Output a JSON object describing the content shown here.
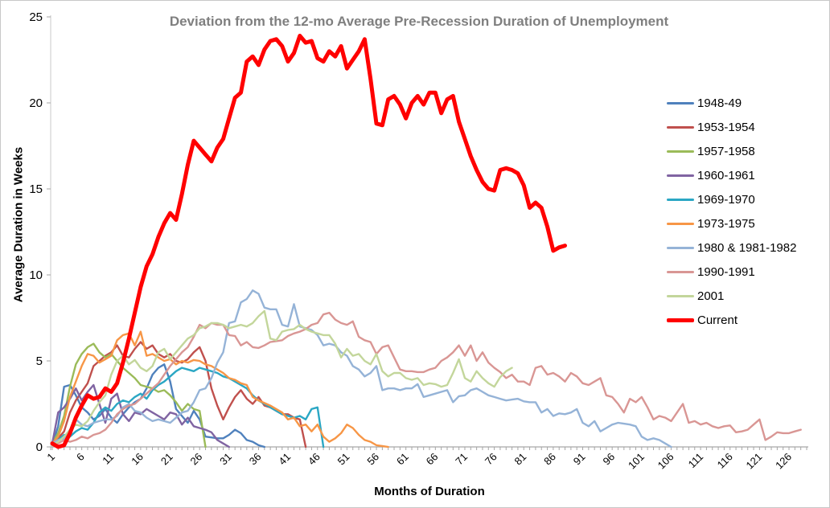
{
  "title": "Deviation from the 12-mo Average Pre-Recession Duration of Unemployment",
  "colors": {
    "title_text": "#7f7f7f",
    "axis_line": "#a6a6a6",
    "tick_mark": "#a6a6a6",
    "frame_border": "#c8c8c8"
  },
  "chart_data": {
    "type": "line",
    "title": "Deviation from the 12-mo Average Pre-Recession Duration of Unemployment",
    "xlabel": "Months of Duration",
    "ylabel": "Average Duration in Weeks",
    "ylim": [
      0,
      25
    ],
    "y_ticks": [
      0,
      5,
      10,
      15,
      20,
      25
    ],
    "x_tick_labels": [
      1,
      6,
      11,
      16,
      21,
      26,
      31,
      36,
      41,
      46,
      51,
      56,
      61,
      66,
      71,
      76,
      81,
      86,
      91,
      96,
      101,
      106,
      111,
      116,
      121,
      126
    ],
    "x_max": 129,
    "grid": false,
    "legend_position": "right",
    "series": [
      {
        "name": "1948-49",
        "color": "#4F81BD",
        "width": 2.4,
        "values": [
          0.1,
          1.2,
          3.5,
          3.6,
          3.0,
          2.3,
          2.0,
          1.6,
          1.8,
          2.2,
          1.7,
          1.4,
          1.9,
          2.3,
          2.6,
          2.8,
          3.4,
          4.2,
          4.6,
          4.8,
          3.8,
          2.2,
          1.8,
          1.4,
          2.1,
          1.6,
          0.6,
          0.55,
          0.5,
          0.5,
          0.7,
          1.0,
          0.8,
          0.4,
          0.3,
          0.1,
          0
        ]
      },
      {
        "name": "1953-1954",
        "color": "#C0504D",
        "width": 2.4,
        "values": [
          0.1,
          0.5,
          0.9,
          2.0,
          2.7,
          3.2,
          3.7,
          4.7,
          5.0,
          5.3,
          5.5,
          5.9,
          5.3,
          5.2,
          5.7,
          6.1,
          5.7,
          5.9,
          5.4,
          5.2,
          5.4,
          5.0,
          4.9,
          5.1,
          5.5,
          5.8,
          5.0,
          3.4,
          2.4,
          1.6,
          2.3,
          2.9,
          3.3,
          2.8,
          2.5,
          2.9,
          2.4,
          2.3,
          2.1,
          1.9,
          1.9,
          1.7,
          1.6,
          0
        ]
      },
      {
        "name": "1957-1958",
        "color": "#9BBB59",
        "width": 2.4,
        "values": [
          0.2,
          0.8,
          1.8,
          3.5,
          4.8,
          5.4,
          5.8,
          6.0,
          5.5,
          5.2,
          5.4,
          5.0,
          4.6,
          4.3,
          4.0,
          3.6,
          3.5,
          3.4,
          3.2,
          3.3,
          3.0,
          2.6,
          2.1,
          2.5,
          2.2,
          2.1,
          0
        ]
      },
      {
        "name": "1960-1961",
        "color": "#8064A2",
        "width": 2.4,
        "values": [
          0.2,
          2.0,
          2.3,
          2.8,
          3.4,
          2.7,
          3.2,
          3.6,
          2.5,
          1.4,
          2.8,
          3.1,
          1.9,
          1.5,
          2.0,
          1.9,
          2.2,
          2.0,
          1.8,
          1.6,
          2.0,
          1.9,
          1.3,
          1.7,
          1.2,
          1.1,
          1.0,
          0.85,
          0.4,
          0.2,
          0
        ]
      },
      {
        "name": "1969-1970",
        "color": "#2BA7C4",
        "width": 2.4,
        "values": [
          0.2,
          0.4,
          0.7,
          0.6,
          0.9,
          1.1,
          1.0,
          1.4,
          2.0,
          2.3,
          2.1,
          2.5,
          2.7,
          2.6,
          2.9,
          3.1,
          2.8,
          3.3,
          3.6,
          3.8,
          4.1,
          4.4,
          4.6,
          4.5,
          4.4,
          4.6,
          4.5,
          4.4,
          4.3,
          4.1,
          4.0,
          3.8,
          3.6,
          3.4,
          3.0,
          2.7,
          2.5,
          2.3,
          2.1,
          1.9,
          1.8,
          1.7,
          1.8,
          1.6,
          2.2,
          2.3,
          0
        ]
      },
      {
        "name": "1973-1975",
        "color": "#F79646",
        "width": 2.4,
        "values": [
          0.2,
          0.6,
          1.5,
          2.9,
          3.8,
          4.7,
          5.4,
          5.3,
          4.9,
          5.1,
          5.3,
          6.2,
          6.5,
          6.6,
          5.9,
          6.7,
          5.3,
          5.4,
          5.2,
          5.0,
          5.1,
          4.8,
          5.0,
          4.9,
          5.05,
          5.0,
          4.8,
          4.7,
          4.5,
          4.3,
          4.0,
          3.9,
          3.7,
          3.6,
          2.9,
          2.7,
          2.55,
          2.4,
          2.2,
          2.0,
          1.6,
          1.7,
          1.2,
          1.3,
          0.9,
          1.3,
          0.6,
          0.3,
          0.5,
          0.8,
          1.3,
          1.1,
          0.7,
          0.4,
          0.3,
          0.1,
          0.05,
          0
        ]
      },
      {
        "name": "1980 & 1981-1982",
        "color": "#95B3D7",
        "width": 2.4,
        "values": [
          0.2,
          0.4,
          0.5,
          0.8,
          1.6,
          1.3,
          1.2,
          1.4,
          1.5,
          1.6,
          1.6,
          1.8,
          2.3,
          2.5,
          2.1,
          2.0,
          1.7,
          1.5,
          1.6,
          1.5,
          1.4,
          1.7,
          2.0,
          2.1,
          2.6,
          3.3,
          3.4,
          4.0,
          4.9,
          5.5,
          7.2,
          7.3,
          8.4,
          8.6,
          9.1,
          8.9,
          8.1,
          8.0,
          8.0,
          7.1,
          7.0,
          8.3,
          7.0,
          6.9,
          6.8,
          6.5,
          5.9,
          6.0,
          5.9,
          5.5,
          5.3,
          4.7,
          4.5,
          4.1,
          4.3,
          4.7,
          3.3,
          3.4,
          3.4,
          3.3,
          3.4,
          3.4,
          3.65,
          2.9,
          3.0,
          3.1,
          3.2,
          3.3,
          2.6,
          2.95,
          3.0,
          3.3,
          3.4,
          3.2,
          3.0,
          2.9,
          2.8,
          2.7,
          2.75,
          2.8,
          2.65,
          2.6,
          2.6,
          2.0,
          2.2,
          1.8,
          1.95,
          1.9,
          2.0,
          2.2,
          1.4,
          1.2,
          1.5,
          0.9,
          1.1,
          1.3,
          1.4,
          1.35,
          1.3,
          1.2,
          0.6,
          0.4,
          0.5,
          0.4,
          0.2,
          0
        ]
      },
      {
        "name": "1990-1991",
        "color": "#D99694",
        "width": 2.4,
        "values": [
          0.1,
          0.2,
          0.4,
          0.3,
          0.4,
          0.6,
          0.5,
          0.7,
          0.8,
          1.0,
          1.4,
          1.9,
          2.2,
          2.4,
          2.5,
          2.8,
          3.1,
          3.4,
          3.7,
          4.2,
          4.7,
          5.1,
          5.5,
          5.8,
          6.4,
          7.1,
          6.9,
          7.2,
          7.1,
          7.1,
          6.5,
          6.45,
          5.9,
          6.1,
          5.8,
          5.75,
          5.9,
          6.1,
          6.15,
          6.2,
          6.45,
          6.6,
          6.7,
          6.85,
          7.1,
          7.2,
          7.7,
          7.8,
          7.4,
          7.2,
          7.1,
          7.3,
          6.4,
          6.2,
          6.1,
          5.4,
          5.8,
          5.9,
          5.2,
          4.5,
          4.4,
          4.4,
          4.35,
          4.35,
          4.5,
          4.6,
          5.0,
          5.2,
          5.5,
          5.9,
          5.3,
          5.9,
          5.0,
          5.5,
          4.9,
          4.6,
          4.35,
          4.0,
          4.2,
          3.8,
          3.8,
          3.6,
          4.6,
          4.7,
          4.2,
          4.3,
          4.1,
          3.8,
          4.3,
          4.1,
          3.7,
          3.6,
          3.8,
          4.0,
          3.0,
          2.9,
          2.5,
          2.0,
          2.8,
          2.6,
          2.9,
          2.3,
          1.6,
          1.8,
          1.7,
          1.5,
          2.0,
          2.5,
          1.4,
          1.5,
          1.3,
          1.4,
          1.2,
          1.1,
          1.2,
          1.25,
          0.85,
          0.9,
          1.0,
          1.3,
          1.6,
          0.4,
          0.6,
          0.85,
          0.8,
          0.8,
          0.9,
          1.0
        ]
      },
      {
        "name": "2001",
        "color": "#C3D69B",
        "width": 2.4,
        "values": [
          0.1,
          0.3,
          0.6,
          1.0,
          1.3,
          1.2,
          1.5,
          2.1,
          2.6,
          3.0,
          4.2,
          5.0,
          5.3,
          4.8,
          5.05,
          4.6,
          4.4,
          4.7,
          5.5,
          5.7,
          5.1,
          5.5,
          5.9,
          6.3,
          6.5,
          6.9,
          7.0,
          7.2,
          7.2,
          7.1,
          6.9,
          7.0,
          7.1,
          7.0,
          7.2,
          7.6,
          7.9,
          6.3,
          6.2,
          6.7,
          6.8,
          6.85,
          7.1,
          6.85,
          6.7,
          6.6,
          6.5,
          6.5,
          6.0,
          5.2,
          5.7,
          5.3,
          5.4,
          5.0,
          4.8,
          5.4,
          4.4,
          4.1,
          4.3,
          4.3,
          4.0,
          3.9,
          4.0,
          3.6,
          3.7,
          3.65,
          3.5,
          3.6,
          4.3,
          5.1,
          4.0,
          3.8,
          4.4,
          4.0,
          3.7,
          3.5,
          4.05,
          4.4,
          4.6
        ]
      },
      {
        "name": "Current",
        "color": "#FF0000",
        "width": 5,
        "values": [
          0.2,
          0.0,
          0.1,
          0.8,
          1.7,
          2.4,
          3.0,
          2.8,
          2.9,
          3.4,
          3.2,
          3.7,
          4.9,
          6.3,
          7.8,
          9.3,
          10.5,
          11.2,
          12.2,
          13.0,
          13.6,
          13.2,
          14.7,
          16.4,
          17.8,
          17.4,
          17.0,
          16.6,
          17.4,
          17.9,
          19.1,
          20.3,
          20.6,
          22.4,
          22.7,
          22.2,
          23.1,
          23.6,
          23.7,
          23.3,
          22.4,
          22.9,
          23.9,
          23.5,
          23.6,
          22.6,
          22.4,
          23.0,
          22.7,
          23.3,
          22.0,
          22.5,
          23.0,
          23.7,
          21.4,
          18.8,
          18.7,
          20.2,
          20.4,
          19.9,
          19.1,
          20.0,
          20.4,
          19.9,
          20.6,
          20.6,
          19.4,
          20.2,
          20.4,
          18.9,
          17.9,
          16.9,
          16.1,
          15.4,
          15.0,
          14.9,
          16.1,
          16.2,
          16.1,
          15.9,
          15.2,
          13.9,
          14.2,
          13.9,
          12.8,
          11.4,
          11.6,
          11.7
        ]
      }
    ]
  }
}
